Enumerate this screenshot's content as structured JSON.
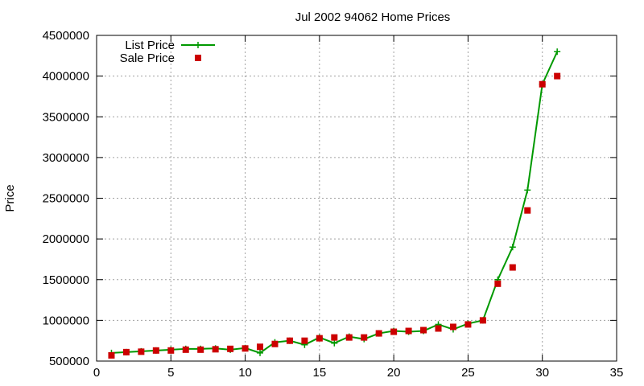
{
  "chart_data": {
    "type": "line",
    "title": "Jul 2002 94062 Home Prices",
    "xlabel": "",
    "ylabel": "Price",
    "xlim": [
      0,
      35
    ],
    "ylim": [
      500000,
      4500000
    ],
    "xticks": [
      0,
      5,
      10,
      15,
      20,
      25,
      30,
      35
    ],
    "yticks": [
      500000,
      1000000,
      1500000,
      2000000,
      2500000,
      3000000,
      3500000,
      4000000,
      4500000
    ],
    "grid": true,
    "legend_position": "top-left",
    "series": [
      {
        "name": "List Price",
        "style": "line-plus",
        "color": "#009900",
        "x": [
          1,
          2,
          3,
          4,
          5,
          6,
          7,
          8,
          9,
          10,
          11,
          12,
          13,
          14,
          15,
          16,
          17,
          18,
          19,
          20,
          21,
          22,
          23,
          24,
          25,
          26,
          27,
          28,
          29,
          30,
          31
        ],
        "y": [
          600000,
          610000,
          620000,
          630000,
          640000,
          650000,
          650000,
          655000,
          640000,
          660000,
          600000,
          730000,
          750000,
          700000,
          790000,
          720000,
          800000,
          770000,
          840000,
          870000,
          860000,
          870000,
          950000,
          890000,
          960000,
          1000000,
          1500000,
          1900000,
          2600000,
          3900000,
          4300000
        ]
      },
      {
        "name": "Sale Price",
        "style": "square",
        "color": "#cc0000",
        "x": [
          1,
          2,
          3,
          4,
          5,
          6,
          7,
          8,
          9,
          10,
          11,
          12,
          13,
          14,
          15,
          16,
          17,
          18,
          19,
          20,
          21,
          22,
          23,
          24,
          25,
          26,
          27,
          28,
          29,
          30,
          31
        ],
        "y": [
          570000,
          610000,
          615000,
          630000,
          630000,
          640000,
          640000,
          645000,
          650000,
          655000,
          675000,
          710000,
          750000,
          750000,
          780000,
          790000,
          790000,
          790000,
          840000,
          860000,
          870000,
          880000,
          900000,
          920000,
          950000,
          1000000,
          1450000,
          1650000,
          2350000,
          3900000,
          4000000
        ]
      }
    ]
  }
}
